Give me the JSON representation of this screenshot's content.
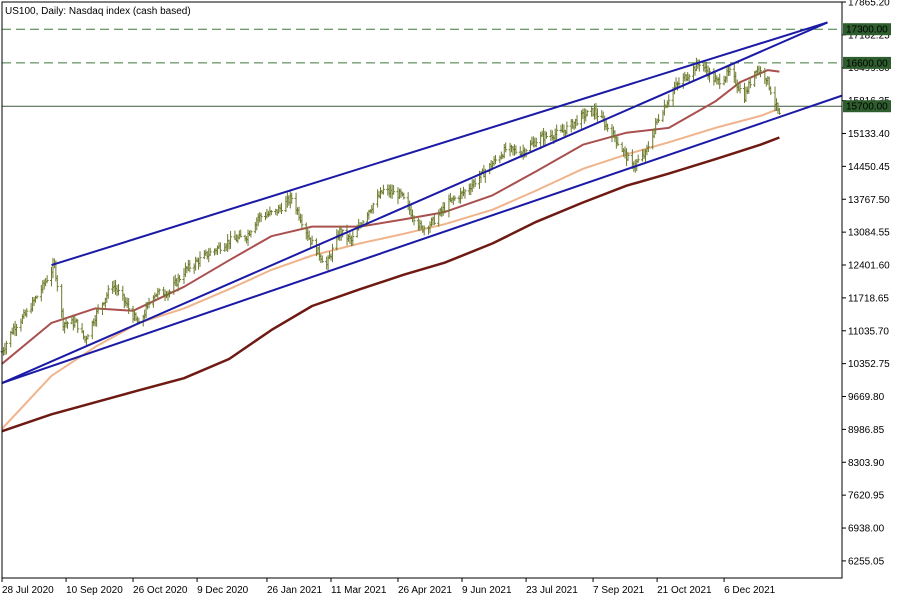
{
  "chart_data": {
    "type": "ohlc",
    "title": "US100, Daily:  Nasdaq index (cash based)",
    "colors": {
      "bars": "#6b7a2b",
      "grid": "#e8e8e8",
      "channel": "#1a1aa6",
      "level_line": "#3f7a3f",
      "ma_short": "#a9504f",
      "ma_mid": "#f0b48c",
      "ma_long": "#6e1a12"
    },
    "y_axis": {
      "range": [
        5900,
        17865
      ],
      "tick_labels": [
        "17865.20",
        "17182.25",
        "16499.30",
        "15816.35",
        "15133.40",
        "14450.45",
        "13767.50",
        "13084.55",
        "12401.60",
        "11718.65",
        "11035.70",
        "10352.75",
        "9669.80",
        "8986.85",
        "8303.90",
        "7620.95",
        "6938.00",
        "6255.05"
      ],
      "tick_values": [
        17865.2,
        17182.25,
        16499.3,
        15816.35,
        15133.4,
        14450.45,
        13767.5,
        13084.55,
        12401.6,
        11718.65,
        11035.7,
        10352.75,
        9669.8,
        8986.85,
        8303.9,
        7620.95,
        6938.0,
        6255.05
      ]
    },
    "x_axis": {
      "range": [
        "2020-07-28",
        "2022-02-25"
      ],
      "tick_labels": [
        "28 Jul 2020",
        "10 Sep 2020",
        "26 Oct 2020",
        "9 Dec 2020",
        "26 Jan 2021",
        "11 Mar 2021",
        "26 Apr 2021",
        "9 Jun 2021",
        "23 Jul 2021",
        "7 Sep 2021",
        "21 Oct 2021",
        "6 Dec 2021"
      ],
      "tick_dates": [
        "2020-07-28",
        "2020-09-10",
        "2020-10-26",
        "2020-12-09",
        "2021-01-26",
        "2021-03-11",
        "2021-04-26",
        "2021-06-09",
        "2021-07-23",
        "2021-09-07",
        "2021-10-21",
        "2021-12-06"
      ]
    },
    "levels": [
      {
        "value": 17300,
        "label": "17300.00",
        "style": "dashed"
      },
      {
        "value": 16600,
        "label": "16600.00",
        "style": "dashed"
      },
      {
        "value": 15700,
        "label": "15700.00",
        "style": "solid"
      }
    ],
    "channel_lines": [
      {
        "points": [
          [
            "2020-07-28",
            9950
          ],
          [
            "2022-02-15",
            17440
          ]
        ]
      },
      {
        "points": [
          [
            "2020-08-31",
            12400
          ],
          [
            "2022-02-15",
            17440
          ]
        ]
      },
      {
        "points": [
          [
            "2020-07-28",
            9950
          ],
          [
            "2022-02-25",
            15920
          ]
        ]
      }
    ],
    "moving_averages": [
      {
        "name": "",
        "color_key": "ma_short",
        "points": [
          [
            "2020-07-28",
            10350
          ],
          [
            "2020-08-31",
            11200
          ],
          [
            "2020-09-30",
            11500
          ],
          [
            "2020-10-26",
            11450
          ],
          [
            "2020-11-30",
            11950
          ],
          [
            "2020-12-31",
            12500
          ],
          [
            "2021-01-29",
            13000
          ],
          [
            "2021-02-26",
            13200
          ],
          [
            "2021-03-31",
            13200
          ],
          [
            "2021-04-30",
            13350
          ],
          [
            "2021-05-28",
            13500
          ],
          [
            "2021-06-30",
            13850
          ],
          [
            "2021-07-30",
            14350
          ],
          [
            "2021-08-31",
            14900
          ],
          [
            "2021-09-30",
            15150
          ],
          [
            "2021-10-29",
            15250
          ],
          [
            "2021-11-30",
            15800
          ],
          [
            "2021-12-17",
            16200
          ],
          [
            "2022-01-05",
            16450
          ],
          [
            "2022-01-13",
            16420
          ]
        ]
      },
      {
        "name": "",
        "color_key": "ma_mid",
        "points": [
          [
            "2020-07-28",
            9000
          ],
          [
            "2020-08-31",
            10100
          ],
          [
            "2020-09-30",
            10700
          ],
          [
            "2020-10-30",
            11200
          ],
          [
            "2020-11-30",
            11500
          ],
          [
            "2020-12-31",
            11900
          ],
          [
            "2021-01-29",
            12300
          ],
          [
            "2021-02-26",
            12600
          ],
          [
            "2021-03-31",
            12850
          ],
          [
            "2021-04-30",
            13050
          ],
          [
            "2021-05-28",
            13250
          ],
          [
            "2021-06-30",
            13550
          ],
          [
            "2021-07-30",
            13950
          ],
          [
            "2021-08-31",
            14400
          ],
          [
            "2021-09-30",
            14700
          ],
          [
            "2021-10-29",
            14950
          ],
          [
            "2021-11-30",
            15250
          ],
          [
            "2021-12-31",
            15500
          ],
          [
            "2022-01-13",
            15650
          ]
        ]
      },
      {
        "name": "",
        "color_key": "ma_long",
        "points": [
          [
            "2020-07-28",
            8950
          ],
          [
            "2020-08-31",
            9300
          ],
          [
            "2020-09-30",
            9550
          ],
          [
            "2020-10-30",
            9800
          ],
          [
            "2020-11-30",
            10050
          ],
          [
            "2020-12-31",
            10450
          ],
          [
            "2021-01-29",
            11050
          ],
          [
            "2021-02-26",
            11550
          ],
          [
            "2021-03-31",
            11900
          ],
          [
            "2021-04-30",
            12200
          ],
          [
            "2021-05-28",
            12450
          ],
          [
            "2021-06-30",
            12850
          ],
          [
            "2021-07-30",
            13300
          ],
          [
            "2021-08-31",
            13700
          ],
          [
            "2021-09-30",
            14050
          ],
          [
            "2021-10-29",
            14300
          ],
          [
            "2021-11-30",
            14600
          ],
          [
            "2021-12-31",
            14900
          ],
          [
            "2022-01-13",
            15050
          ]
        ]
      }
    ],
    "price_path": [
      [
        "2020-07-28",
        10600
      ],
      [
        "2020-08-05",
        11100
      ],
      [
        "2020-08-14",
        11400
      ],
      [
        "2020-08-24",
        11900
      ],
      [
        "2020-09-02",
        12400
      ],
      [
        "2020-09-08",
        11200
      ],
      [
        "2020-09-17",
        11200
      ],
      [
        "2020-09-23",
        10850
      ],
      [
        "2020-10-01",
        11400
      ],
      [
        "2020-10-12",
        12000
      ],
      [
        "2020-10-19",
        11700
      ],
      [
        "2020-10-30",
        11150
      ],
      [
        "2020-11-09",
        11800
      ],
      [
        "2020-11-20",
        11850
      ],
      [
        "2020-12-01",
        12300
      ],
      [
        "2020-12-15",
        12600
      ],
      [
        "2020-12-31",
        12900
      ],
      [
        "2021-01-12",
        13000
      ],
      [
        "2021-01-20",
        13400
      ],
      [
        "2021-02-01",
        13500
      ],
      [
        "2021-02-12",
        13800
      ],
      [
        "2021-02-25",
        12900
      ],
      [
        "2021-03-08",
        12400
      ],
      [
        "2021-03-17",
        13100
      ],
      [
        "2021-03-25",
        12900
      ],
      [
        "2021-04-05",
        13500
      ],
      [
        "2021-04-16",
        13950
      ],
      [
        "2021-04-28",
        13850
      ],
      [
        "2021-05-12",
        13150
      ],
      [
        "2021-05-20",
        13300
      ],
      [
        "2021-05-31",
        13700
      ],
      [
        "2021-06-10",
        13900
      ],
      [
        "2021-06-25",
        14350
      ],
      [
        "2021-07-09",
        14800
      ],
      [
        "2021-07-20",
        14750
      ],
      [
        "2021-08-02",
        15050
      ],
      [
        "2021-08-16",
        15150
      ],
      [
        "2021-08-31",
        15500
      ],
      [
        "2021-09-08",
        15600
      ],
      [
        "2021-09-20",
        15150
      ],
      [
        "2021-10-04",
        14450
      ],
      [
        "2021-10-13",
        14700
      ],
      [
        "2021-10-21",
        15400
      ],
      [
        "2021-11-01",
        16050
      ],
      [
        "2021-11-19",
        16600
      ],
      [
        "2021-12-01",
        16200
      ],
      [
        "2021-12-10",
        16400
      ],
      [
        "2021-12-20",
        15900
      ],
      [
        "2021-12-28",
        16500
      ],
      [
        "2022-01-04",
        16300
      ],
      [
        "2022-01-13",
        15500
      ]
    ]
  }
}
